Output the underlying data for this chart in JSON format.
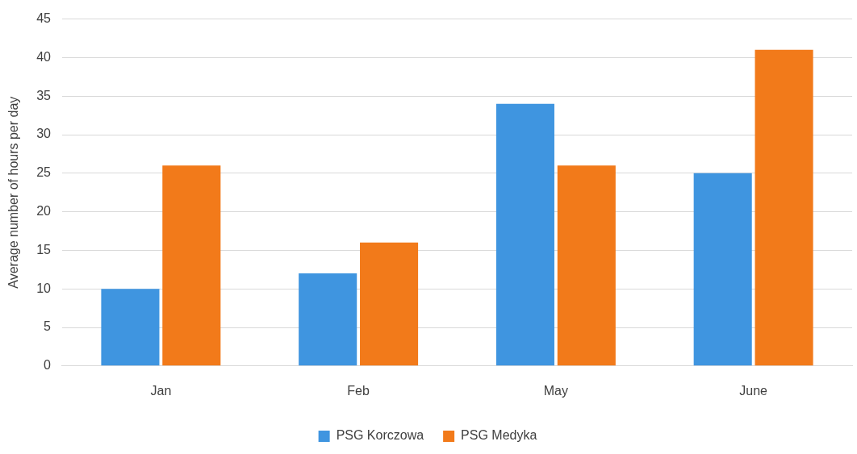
{
  "chart_data": {
    "type": "bar",
    "ylabel": "Average number of hours per day",
    "categories": [
      "Jan",
      "Feb",
      "May",
      "June"
    ],
    "series": [
      {
        "name": "PSG Korczowa",
        "color": "#3f95e0",
        "values": [
          10,
          12,
          34,
          25
        ]
      },
      {
        "name": "PSG Medyka",
        "color": "#f27a1a",
        "values": [
          26,
          16,
          26,
          41
        ]
      }
    ],
    "ylim": [
      0,
      45
    ],
    "yticks": [
      0,
      5,
      10,
      15,
      20,
      25,
      30,
      35,
      40,
      45
    ],
    "grid": "y",
    "legend": "bottom"
  }
}
